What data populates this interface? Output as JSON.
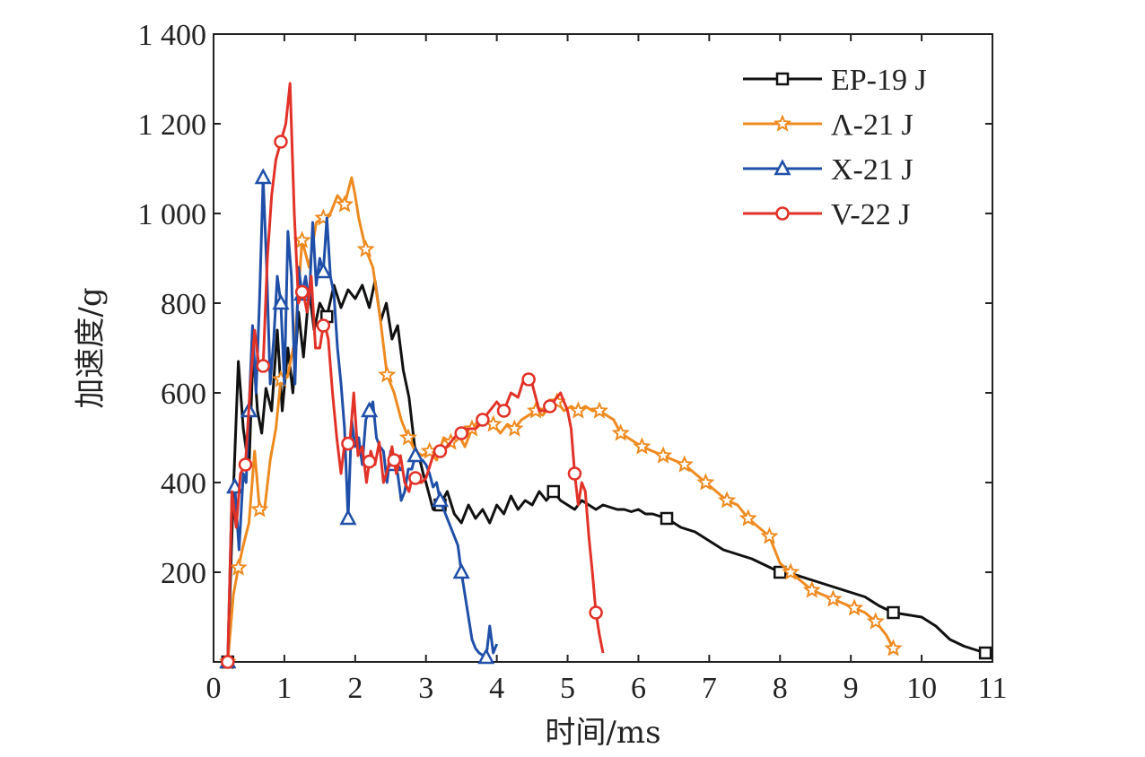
{
  "chart_data": {
    "type": "line",
    "title": "",
    "xlabel": "时间/ms",
    "ylabel": "加速度/g",
    "xlim": [
      0,
      11
    ],
    "ylim": [
      0,
      1400
    ],
    "xticks": [
      0,
      1,
      2,
      3,
      4,
      5,
      6,
      7,
      8,
      9,
      10,
      11
    ],
    "xtick_labels": [
      "0",
      "1",
      "2",
      "3",
      "4",
      "5",
      "6",
      "7",
      "8",
      "9",
      "10",
      "11"
    ],
    "yticks": [
      200,
      400,
      600,
      800,
      1000,
      1200,
      1400
    ],
    "ytick_labels": [
      "200",
      "400",
      "600",
      "800",
      "1 000",
      "1 200",
      "1 400"
    ],
    "grid": false,
    "legend_position": "top-right",
    "series": [
      {
        "name": "EP-19 J",
        "color": "#111111",
        "marker": "square",
        "markers_x": [
          0.2,
          1.6,
          3.2,
          4.8,
          6.4,
          8.0,
          9.6,
          10.9
        ],
        "x": [
          0.2,
          0.28,
          0.35,
          0.42,
          0.5,
          0.56,
          0.62,
          0.68,
          0.74,
          0.82,
          0.9,
          0.97,
          1.05,
          1.12,
          1.2,
          1.27,
          1.35,
          1.42,
          1.5,
          1.6,
          1.7,
          1.8,
          1.9,
          2.0,
          2.1,
          2.2,
          2.28,
          2.36,
          2.44,
          2.52,
          2.6,
          2.68,
          2.76,
          2.84,
          2.9,
          2.96,
          3.0,
          3.1,
          3.2,
          3.3,
          3.4,
          3.5,
          3.6,
          3.7,
          3.8,
          3.9,
          4.0,
          4.1,
          4.2,
          4.3,
          4.4,
          4.5,
          4.6,
          4.7,
          4.8,
          4.9,
          5.0,
          5.1,
          5.2,
          5.3,
          5.4,
          5.5,
          5.6,
          5.7,
          5.8,
          5.9,
          6.0,
          6.1,
          6.2,
          6.3,
          6.4,
          6.5,
          6.6,
          6.8,
          7.0,
          7.2,
          7.4,
          7.6,
          7.8,
          8.0,
          8.2,
          8.4,
          8.6,
          8.8,
          9.0,
          9.2,
          9.4,
          9.6,
          9.8,
          10.0,
          10.2,
          10.4,
          10.6,
          10.8,
          10.9
        ],
        "y": [
          0,
          380,
          670,
          520,
          430,
          700,
          560,
          510,
          610,
          560,
          740,
          560,
          700,
          600,
          780,
          680,
          830,
          740,
          800,
          770,
          840,
          790,
          830,
          810,
          840,
          790,
          850,
          760,
          800,
          720,
          750,
          650,
          590,
          480,
          460,
          420,
          400,
          340,
          350,
          380,
          330,
          310,
          350,
          320,
          340,
          310,
          350,
          330,
          370,
          340,
          360,
          350,
          380,
          360,
          380,
          360,
          350,
          340,
          360,
          350,
          340,
          350,
          345,
          340,
          340,
          335,
          340,
          330,
          330,
          325,
          320,
          310,
          300,
          290,
          270,
          250,
          240,
          230,
          215,
          200,
          195,
          185,
          175,
          165,
          155,
          145,
          125,
          110,
          105,
          100,
          80,
          50,
          35,
          25,
          20
        ]
      },
      {
        "name": "Λ-21 J",
        "color": "#ee8a1f",
        "marker": "star",
        "markers_x": [
          0.2,
          0.35,
          0.65,
          0.95,
          1.25,
          1.55,
          1.85,
          2.15,
          2.45,
          2.75,
          3.05,
          3.35,
          3.65,
          3.95,
          4.25,
          4.55,
          4.85,
          5.15,
          5.45,
          5.75,
          6.05,
          6.35,
          6.65,
          6.95,
          7.25,
          7.55,
          7.85,
          8.15,
          8.45,
          8.75,
          9.05,
          9.35,
          9.6
        ],
        "x": [
          0.2,
          0.28,
          0.35,
          0.42,
          0.5,
          0.58,
          0.65,
          0.72,
          0.8,
          0.88,
          0.95,
          1.05,
          1.15,
          1.25,
          1.35,
          1.45,
          1.55,
          1.65,
          1.75,
          1.85,
          1.95,
          2.0,
          2.05,
          2.15,
          2.25,
          2.35,
          2.45,
          2.55,
          2.65,
          2.75,
          2.85,
          2.95,
          3.05,
          3.15,
          3.25,
          3.35,
          3.45,
          3.55,
          3.65,
          3.75,
          3.85,
          3.95,
          4.05,
          4.15,
          4.25,
          4.35,
          4.45,
          4.55,
          4.65,
          4.75,
          4.85,
          4.95,
          5.05,
          5.15,
          5.25,
          5.35,
          5.45,
          5.55,
          5.65,
          5.75,
          5.85,
          5.95,
          6.05,
          6.2,
          6.35,
          6.5,
          6.65,
          6.8,
          6.95,
          7.1,
          7.25,
          7.4,
          7.55,
          7.7,
          7.85,
          8.0,
          8.15,
          8.3,
          8.45,
          8.6,
          8.75,
          8.9,
          9.05,
          9.2,
          9.35,
          9.5,
          9.6
        ],
        "y": [
          0,
          150,
          210,
          260,
          310,
          470,
          340,
          340,
          450,
          520,
          630,
          640,
          720,
          940,
          880,
          980,
          990,
          1000,
          1040,
          1020,
          1080,
          1040,
          990,
          920,
          880,
          770,
          640,
          600,
          540,
          500,
          470,
          460,
          470,
          450,
          500,
          490,
          510,
          480,
          520,
          540,
          540,
          530,
          510,
          530,
          520,
          540,
          550,
          560,
          550,
          570,
          580,
          560,
          570,
          560,
          570,
          560,
          560,
          550,
          540,
          510,
          500,
          490,
          480,
          470,
          460,
          450,
          440,
          420,
          400,
          380,
          360,
          350,
          320,
          300,
          280,
          220,
          200,
          180,
          160,
          150,
          140,
          130,
          120,
          110,
          90,
          60,
          30
        ]
      },
      {
        "name": "X-21 J",
        "color": "#1f4fa8",
        "marker": "triangle",
        "markers_x": [
          0.2,
          0.3,
          0.5,
          0.7,
          0.95,
          1.25,
          1.55,
          1.9,
          2.2,
          2.55,
          2.85,
          3.2,
          3.5,
          3.85
        ],
        "x": [
          0.2,
          0.26,
          0.3,
          0.36,
          0.42,
          0.46,
          0.5,
          0.55,
          0.6,
          0.65,
          0.7,
          0.75,
          0.8,
          0.85,
          0.9,
          0.95,
          1.0,
          1.05,
          1.1,
          1.15,
          1.2,
          1.25,
          1.3,
          1.35,
          1.4,
          1.45,
          1.5,
          1.55,
          1.6,
          1.65,
          1.7,
          1.75,
          1.8,
          1.85,
          1.9,
          1.95,
          2.0,
          2.05,
          2.1,
          2.15,
          2.2,
          2.25,
          2.3,
          2.35,
          2.4,
          2.45,
          2.5,
          2.55,
          2.6,
          2.65,
          2.7,
          2.75,
          2.8,
          2.85,
          2.9,
          2.95,
          3.0,
          3.05,
          3.1,
          3.15,
          3.2,
          3.25,
          3.3,
          3.35,
          3.4,
          3.45,
          3.5,
          3.55,
          3.6,
          3.65,
          3.7,
          3.75,
          3.8,
          3.85,
          3.9,
          3.95,
          4.0
        ],
        "y": [
          0,
          380,
          390,
          250,
          420,
          400,
          560,
          750,
          600,
          810,
          1080,
          880,
          620,
          720,
          860,
          800,
          620,
          960,
          860,
          620,
          880,
          820,
          860,
          800,
          980,
          840,
          900,
          870,
          990,
          860,
          820,
          700,
          620,
          520,
          320,
          540,
          480,
          500,
          440,
          540,
          560,
          580,
          500,
          480,
          470,
          400,
          470,
          440,
          420,
          360,
          380,
          430,
          430,
          460,
          450,
          450,
          440,
          420,
          390,
          400,
          360,
          340,
          320,
          300,
          280,
          260,
          200,
          150,
          100,
          50,
          30,
          20,
          15,
          10,
          80,
          20,
          40
        ]
      },
      {
        "name": "V-22 J",
        "color": "#e23228",
        "marker": "circle",
        "markers_x": [
          0.2,
          0.45,
          0.7,
          0.95,
          1.25,
          1.55,
          1.9,
          2.2,
          2.55,
          2.85,
          3.2,
          3.5,
          3.8,
          4.1,
          4.45,
          4.75,
          5.1,
          5.4
        ],
        "x": [
          0.2,
          0.26,
          0.32,
          0.38,
          0.45,
          0.52,
          0.58,
          0.64,
          0.7,
          0.76,
          0.82,
          0.88,
          0.95,
          1.02,
          1.08,
          1.14,
          1.2,
          1.26,
          1.32,
          1.38,
          1.44,
          1.5,
          1.56,
          1.62,
          1.68,
          1.74,
          1.8,
          1.86,
          1.92,
          1.98,
          2.04,
          2.1,
          2.16,
          2.22,
          2.28,
          2.34,
          2.4,
          2.46,
          2.52,
          2.58,
          2.64,
          2.7,
          2.76,
          2.82,
          2.88,
          2.94,
          3.0,
          3.1,
          3.2,
          3.3,
          3.4,
          3.5,
          3.6,
          3.7,
          3.8,
          3.9,
          4.0,
          4.1,
          4.2,
          4.3,
          4.4,
          4.5,
          4.6,
          4.7,
          4.8,
          4.9,
          5.0,
          5.05,
          5.1,
          5.15,
          5.2,
          5.25,
          5.3,
          5.35,
          5.4,
          5.45,
          5.5
        ],
        "y": [
          0,
          380,
          300,
          420,
          440,
          620,
          740,
          660,
          660,
          900,
          1040,
          1120,
          1160,
          1200,
          1290,
          1000,
          800,
          830,
          780,
          860,
          700,
          700,
          760,
          720,
          600,
          500,
          420,
          500,
          480,
          600,
          460,
          480,
          400,
          470,
          440,
          490,
          400,
          430,
          480,
          420,
          460,
          400,
          380,
          420,
          400,
          400,
          410,
          460,
          470,
          480,
          500,
          510,
          520,
          520,
          540,
          560,
          580,
          560,
          600,
          590,
          640,
          620,
          560,
          560,
          580,
          600,
          560,
          520,
          420,
          350,
          400,
          380,
          280,
          200,
          110,
          60,
          20
        ]
      }
    ]
  }
}
